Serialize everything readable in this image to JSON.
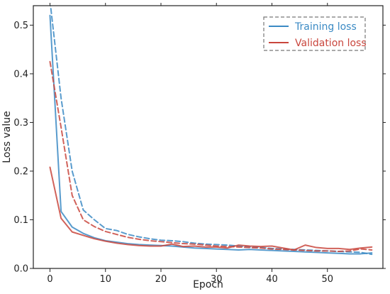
{
  "chart_data": {
    "type": "line",
    "title": "",
    "xlabel": "Epoch",
    "ylabel": "Loss value",
    "xlim": [
      -3,
      60
    ],
    "ylim": [
      0,
      0.54
    ],
    "xticks": [
      0,
      10,
      20,
      30,
      40,
      50
    ],
    "yticks": [
      0.0,
      0.1,
      0.2,
      0.3,
      0.4,
      0.5
    ],
    "ytick_labels": [
      "0.0",
      "0.1",
      "0.2",
      "0.3",
      "0.4",
      "0.5"
    ],
    "grid": false,
    "legend_position": "top-right",
    "legend_entries": [
      {
        "label": "Training loss",
        "color": "#3b8ac4"
      },
      {
        "label": "Validation loss",
        "color": "#c9463d"
      }
    ],
    "series": [
      {
        "name": "Training loss",
        "color": "#3b8ac4",
        "style": "solid",
        "x": [
          0,
          2,
          4,
          6,
          8,
          10,
          12,
          14,
          16,
          18,
          20,
          22,
          24,
          26,
          28,
          30,
          32,
          34,
          36,
          38,
          40,
          42,
          44,
          46,
          48,
          50,
          52,
          54,
          56,
          58
        ],
        "y": [
          0.52,
          0.117,
          0.085,
          0.072,
          0.063,
          0.057,
          0.054,
          0.051,
          0.049,
          0.048,
          0.047,
          0.046,
          0.044,
          0.042,
          0.041,
          0.04,
          0.039,
          0.038,
          0.039,
          0.038,
          0.037,
          0.036,
          0.035,
          0.034,
          0.033,
          0.032,
          0.031,
          0.03,
          0.03,
          0.032
        ]
      },
      {
        "name": "",
        "color": "#3b8ac4",
        "style": "dashed",
        "x": [
          0,
          2,
          4,
          6,
          8,
          10,
          12,
          14,
          16,
          18,
          20,
          22,
          24,
          26,
          28,
          30,
          32,
          34,
          36,
          38,
          40,
          42,
          44,
          46,
          48,
          50,
          52,
          54,
          56,
          58
        ],
        "y": [
          0.55,
          0.35,
          0.2,
          0.12,
          0.1,
          0.082,
          0.078,
          0.07,
          0.065,
          0.061,
          0.058,
          0.057,
          0.055,
          0.052,
          0.05,
          0.049,
          0.048,
          0.046,
          0.044,
          0.043,
          0.041,
          0.04,
          0.039,
          0.038,
          0.037,
          0.036,
          0.035,
          0.034,
          0.033,
          0.029
        ]
      },
      {
        "name": "Validation loss",
        "color": "#c9463d",
        "style": "solid",
        "x": [
          0,
          2,
          4,
          6,
          8,
          10,
          12,
          14,
          16,
          18,
          20,
          22,
          24,
          26,
          28,
          30,
          32,
          34,
          36,
          38,
          40,
          42,
          44,
          46,
          48,
          50,
          52,
          54,
          56,
          58
        ],
        "y": [
          0.208,
          0.103,
          0.075,
          0.068,
          0.061,
          0.056,
          0.052,
          0.049,
          0.047,
          0.046,
          0.046,
          0.05,
          0.045,
          0.046,
          0.044,
          0.044,
          0.042,
          0.048,
          0.046,
          0.045,
          0.046,
          0.042,
          0.038,
          0.048,
          0.043,
          0.041,
          0.041,
          0.039,
          0.042,
          0.044
        ]
      },
      {
        "name": "",
        "color": "#c9463d",
        "style": "dashed",
        "x": [
          0,
          2,
          4,
          6,
          8,
          10,
          12,
          14,
          16,
          18,
          20,
          22,
          24,
          26,
          28,
          30,
          32,
          34,
          36,
          38,
          40,
          42,
          44,
          46,
          48,
          50,
          52,
          54,
          56,
          58
        ],
        "y": [
          0.425,
          0.29,
          0.15,
          0.1,
          0.086,
          0.076,
          0.07,
          0.064,
          0.06,
          0.057,
          0.055,
          0.053,
          0.051,
          0.05,
          0.048,
          0.046,
          0.045,
          0.044,
          0.043,
          0.042,
          0.04,
          0.039,
          0.038,
          0.037,
          0.036,
          0.036,
          0.035,
          0.036,
          0.04,
          0.038
        ]
      }
    ]
  }
}
